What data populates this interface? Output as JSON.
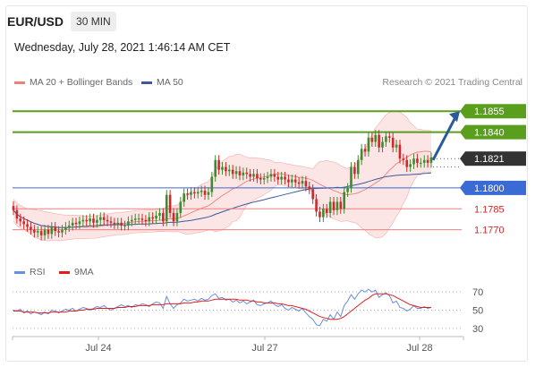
{
  "header": {
    "symbol": "EUR/USD",
    "timeframe": "30 MIN",
    "datetime": "Wednesday, July 28, 2021 1:46:14 AM CET"
  },
  "price_legend": {
    "ma20": {
      "label": "MA 20 + Bollinger Bands",
      "color": "#f08080"
    },
    "ma50": {
      "label": "MA 50",
      "color": "#3a5a9a"
    },
    "copyright": "Research © 2021 Trading Central"
  },
  "rsi_legend": {
    "rsi": {
      "label": "RSI",
      "color": "#6a8fdc"
    },
    "ma9": {
      "label": "9MA",
      "color": "#e02020"
    }
  },
  "colors": {
    "resistance": "#5a9e1e",
    "support_key": "#3a6ad4",
    "support": "#f08080",
    "current": "#333333",
    "arrow": "#2a5a9a",
    "bull": "#3d8c2e",
    "bear": "#cc2a2a",
    "band_fill": "#fbdcdc"
  },
  "chart_data": [
    {
      "type": "candlestick",
      "xlabels": [
        "Jul 24",
        "Jul 27",
        "Jul 28"
      ],
      "ylim": [
        1.1755,
        1.1868
      ],
      "levels": [
        {
          "label": "1.1855",
          "value": 1.1855,
          "kind": "resistance"
        },
        {
          "label": "1.1840",
          "value": 1.184,
          "kind": "resistance"
        },
        {
          "label": "1.1821",
          "value": 1.1821,
          "kind": "current"
        },
        {
          "label": "1.1800",
          "value": 1.18,
          "kind": "support_key"
        },
        {
          "label": "1.1785",
          "value": 1.1785,
          "kind": "support"
        },
        {
          "label": "1.1770",
          "value": 1.177,
          "kind": "support"
        }
      ],
      "forecast_arrow": {
        "from": 1.182,
        "to": 1.1855
      },
      "closes": [
        1.1784,
        1.1778,
        1.1776,
        1.1774,
        1.1772,
        1.177,
        1.1768,
        1.1769,
        1.1766,
        1.177,
        1.1767,
        1.1772,
        1.1769,
        1.1768,
        1.177,
        1.1772,
        1.1773,
        1.1775,
        1.1774,
        1.1776,
        1.1777,
        1.1776,
        1.1778,
        1.1775,
        1.1777,
        1.1779,
        1.1777,
        1.1776,
        1.1775,
        1.1774,
        1.1775,
        1.1773,
        1.1773,
        1.1776,
        1.1777,
        1.1778,
        1.1778,
        1.1777,
        1.1776,
        1.1779,
        1.1778,
        1.178,
        1.1782,
        1.1776,
        1.1795,
        1.1782,
        1.1776,
        1.1782,
        1.179,
        1.1796,
        1.1795,
        1.1797,
        1.1796,
        1.1797,
        1.1798,
        1.1795,
        1.1797,
        1.1808,
        1.182,
        1.1813,
        1.1815,
        1.1812,
        1.1813,
        1.181,
        1.1812,
        1.1809,
        1.1811,
        1.181,
        1.1808,
        1.181,
        1.1807,
        1.1806,
        1.1807,
        1.1808,
        1.181,
        1.1808,
        1.1806,
        1.1808,
        1.1806,
        1.1804,
        1.1806,
        1.1804,
        1.1803,
        1.1805,
        1.1801,
        1.1799,
        1.1792,
        1.1783,
        1.1779,
        1.1785,
        1.1782,
        1.179,
        1.1784,
        1.179,
        1.1785,
        1.1797,
        1.18,
        1.1815,
        1.181,
        1.182,
        1.1828,
        1.1826,
        1.1836,
        1.1833,
        1.1838,
        1.1829,
        1.1833,
        1.1837,
        1.1836,
        1.1829,
        1.1831,
        1.1821,
        1.182,
        1.1815,
        1.1817,
        1.1821,
        1.1818,
        1.1818,
        1.182,
        1.1818,
        1.1822
      ],
      "rsi": {
        "ticks": [
          70,
          50,
          30
        ],
        "ylim": [
          25,
          78
        ],
        "rsi_values": [
          50,
          49,
          51,
          47,
          49,
          46,
          48,
          47,
          45,
          48,
          46,
          50,
          49,
          47,
          49,
          51,
          50,
          52,
          49,
          51,
          53,
          52,
          50,
          52,
          54,
          53,
          55,
          52,
          50,
          52,
          54,
          56,
          54,
          55,
          53,
          56,
          55,
          57,
          56,
          54,
          57,
          59,
          58,
          52,
          65,
          57,
          52,
          56,
          58,
          62,
          60,
          61,
          62,
          60,
          63,
          61,
          62,
          66,
          68,
          63,
          64,
          61,
          62,
          59,
          61,
          58,
          60,
          57,
          59,
          61,
          56,
          55,
          57,
          58,
          60,
          56,
          54,
          56,
          52,
          50,
          53,
          51,
          49,
          52,
          47,
          43,
          40,
          34,
          33,
          40,
          38,
          45,
          40,
          48,
          43,
          55,
          60,
          67,
          62,
          68,
          72,
          70,
          73,
          70,
          72,
          64,
          67,
          69,
          66,
          58,
          60,
          53,
          52,
          49,
          51,
          55,
          52,
          52,
          54,
          52,
          53
        ],
        "ma9_values": [
          49,
          49,
          49,
          48,
          48,
          48,
          48,
          47,
          47,
          47,
          47,
          48,
          48,
          48,
          48,
          48,
          49,
          49,
          49,
          50,
          50,
          51,
          51,
          51,
          52,
          52,
          52,
          52,
          52,
          52,
          53,
          53,
          53,
          54,
          54,
          54,
          55,
          55,
          55,
          55,
          56,
          56,
          56,
          56,
          57,
          57,
          57,
          57,
          57,
          58,
          58,
          58,
          59,
          59,
          60,
          60,
          60,
          61,
          62,
          62,
          62,
          62,
          62,
          62,
          62,
          61,
          61,
          61,
          60,
          60,
          59,
          59,
          58,
          58,
          58,
          58,
          57,
          57,
          56,
          55,
          55,
          54,
          53,
          52,
          51,
          49,
          47,
          45,
          43,
          42,
          41,
          40,
          40,
          40,
          41,
          43,
          46,
          49,
          52,
          55,
          58,
          61,
          63,
          66,
          68,
          68,
          68,
          68,
          67,
          66,
          64,
          62,
          60,
          58,
          56,
          55,
          54,
          53,
          53,
          53,
          53
        ]
      }
    }
  ]
}
